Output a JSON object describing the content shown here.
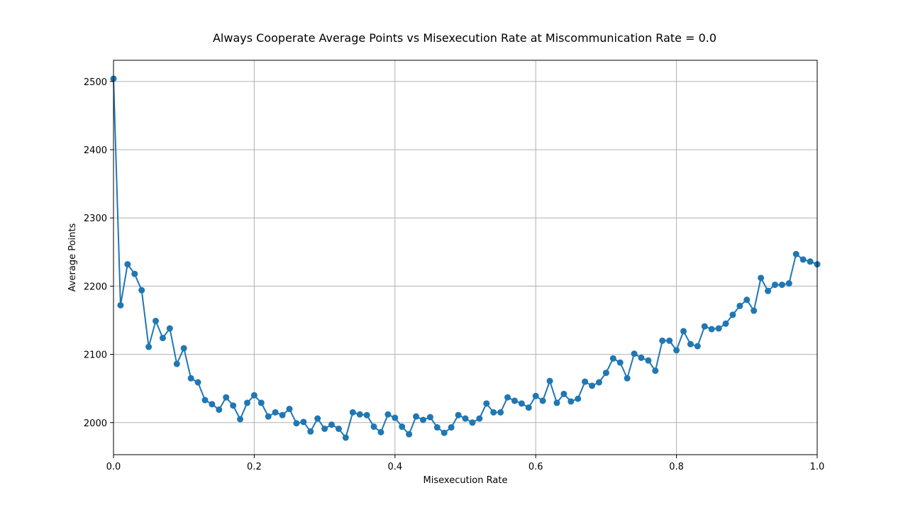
{
  "chart_data": {
    "type": "line",
    "title": "Always Cooperate Average Points vs Misexecution Rate at Miscommunication Rate = 0.0",
    "xlabel": "Misexecution Rate",
    "ylabel": "Average Points",
    "xlim": [
      0.0,
      1.0
    ],
    "ylim": [
      1953,
      2531
    ],
    "xticks": [
      0.0,
      0.2,
      0.4,
      0.6,
      0.8,
      1.0
    ],
    "xtick_labels": [
      "0.0",
      "0.2",
      "0.4",
      "0.6",
      "0.8",
      "1.0"
    ],
    "yticks": [
      2000,
      2100,
      2200,
      2300,
      2400,
      2500
    ],
    "ytick_labels": [
      "2000",
      "2100",
      "2200",
      "2300",
      "2400",
      "2500"
    ],
    "grid": true,
    "line_color": "#1f77b4",
    "series": [
      {
        "marker": "circle",
        "x": [
          0.0,
          0.01,
          0.02,
          0.03,
          0.04,
          0.05,
          0.06,
          0.07,
          0.08,
          0.09,
          0.1,
          0.11,
          0.12,
          0.13,
          0.14,
          0.15,
          0.16,
          0.17,
          0.18,
          0.19,
          0.2,
          0.21,
          0.22,
          0.23,
          0.24,
          0.25,
          0.26,
          0.27,
          0.28,
          0.29,
          0.3,
          0.31,
          0.32,
          0.33,
          0.34,
          0.35,
          0.36,
          0.37,
          0.38,
          0.39,
          0.4,
          0.41,
          0.42,
          0.43,
          0.44,
          0.45,
          0.46,
          0.47,
          0.48,
          0.49,
          0.5,
          0.51,
          0.52,
          0.53,
          0.54,
          0.55,
          0.56,
          0.57,
          0.58,
          0.59,
          0.6,
          0.61,
          0.62,
          0.63,
          0.64,
          0.65,
          0.66,
          0.67,
          0.68,
          0.69,
          0.7,
          0.71,
          0.72,
          0.73,
          0.74,
          0.75,
          0.76,
          0.77,
          0.78,
          0.79,
          0.8,
          0.81,
          0.82,
          0.83,
          0.84,
          0.85,
          0.86,
          0.87,
          0.88,
          0.89,
          0.9,
          0.91,
          0.92,
          0.93,
          0.94,
          0.95,
          0.96,
          0.97,
          0.98,
          0.99,
          1.0
        ],
        "y": [
          2504,
          2172,
          2232,
          2218,
          2194,
          2111,
          2149,
          2124,
          2138,
          2086,
          2109,
          2065,
          2059,
          2033,
          2027,
          2019,
          2037,
          2025,
          2005,
          2029,
          2040,
          2029,
          2009,
          2015,
          2011,
          2020,
          1999,
          2001,
          1987,
          2006,
          1991,
          1997,
          1991,
          1978,
          2015,
          2012,
          2011,
          1994,
          1986,
          2012,
          2007,
          1994,
          1983,
          2009,
          2004,
          2008,
          1993,
          1985,
          1993,
          2011,
          2006,
          2000,
          2006,
          2028,
          2015,
          2015,
          2037,
          2032,
          2028,
          2022,
          2039,
          2032,
          2061,
          2029,
          2042,
          2031,
          2035,
          2060,
          2054,
          2059,
          2073,
          2094,
          2088,
          2065,
          2101,
          2095,
          2091,
          2076,
          2120,
          2120,
          2106,
          2134,
          2115,
          2112,
          2141,
          2137,
          2138,
          2145,
          2158,
          2171,
          2180,
          2164,
          2212,
          2193,
          2202,
          2202,
          2204,
          2247,
          2239,
          2236,
          2232
        ]
      }
    ]
  }
}
